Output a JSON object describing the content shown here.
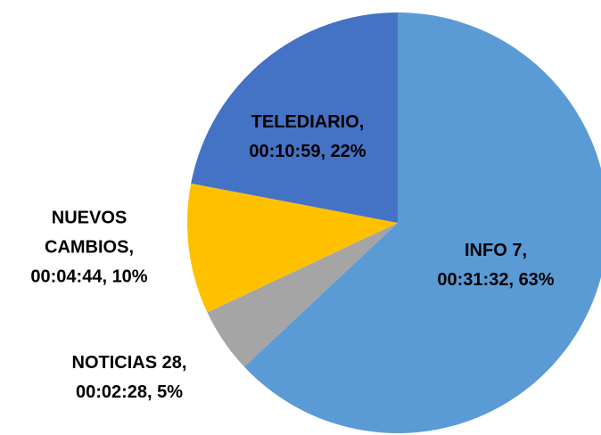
{
  "chart_data": {
    "type": "pie",
    "values": [
      63,
      5,
      10,
      22
    ],
    "value_labels": [
      [
        "INFO 7,",
        "00:31:32, 63%"
      ],
      [
        "NOTICIAS 28,",
        "00:02:28, 5%"
      ],
      [
        "NUEVOS",
        "CAMBIOS,",
        "00:04:44, 10%"
      ],
      [
        "TELEDIARIO,",
        "00:10:59, 22%"
      ]
    ],
    "colors": [
      "#5b9bd5",
      "#a5a5a5",
      "#ffc000",
      "#4472c4"
    ]
  }
}
